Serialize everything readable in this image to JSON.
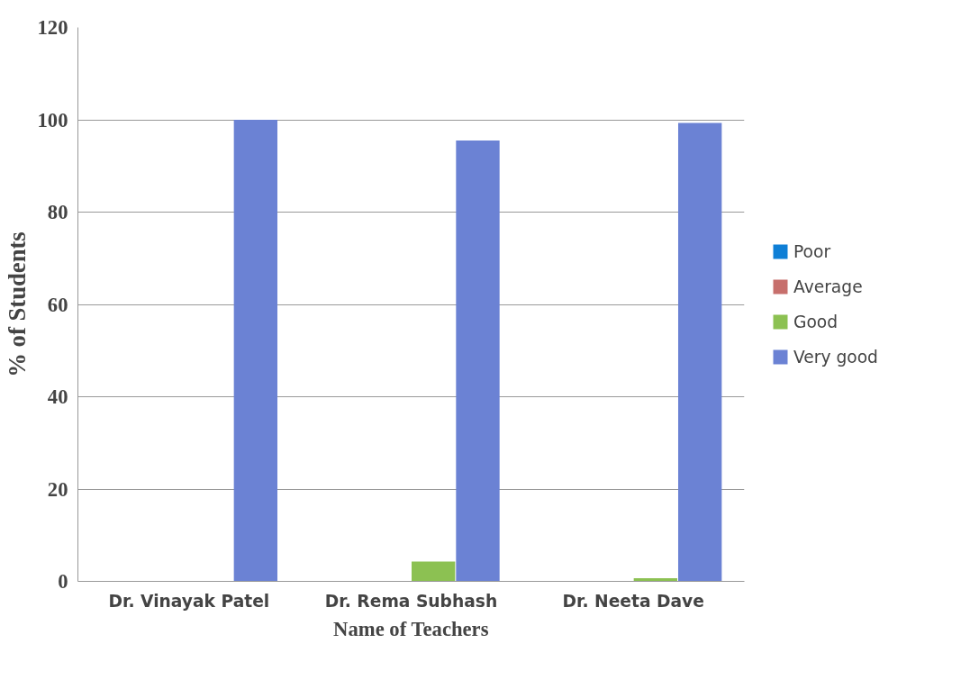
{
  "chart_data": {
    "type": "bar",
    "xlabel": "Name of Teachers",
    "ylabel": "% of Students",
    "categories": [
      "Dr. Vinayak Patel",
      "Dr. Rema Subhash",
      "Dr. Neeta Dave"
    ],
    "series": [
      {
        "name": "Poor",
        "color": "#0e7fd6",
        "values": [
          0,
          0,
          0
        ]
      },
      {
        "name": "Average",
        "color": "#c76f6c",
        "values": [
          0,
          0,
          0
        ]
      },
      {
        "name": "Good",
        "color": "#8cc152",
        "values": [
          0,
          4.3,
          0.7
        ]
      },
      {
        "name": "Very good",
        "color": "#6b82d4",
        "values": [
          100,
          95.5,
          99.3
        ]
      }
    ],
    "ylim": [
      0,
      120
    ],
    "yticks": [
      0,
      20,
      40,
      60,
      80,
      100,
      120
    ],
    "grid": "y",
    "legend": "right"
  }
}
